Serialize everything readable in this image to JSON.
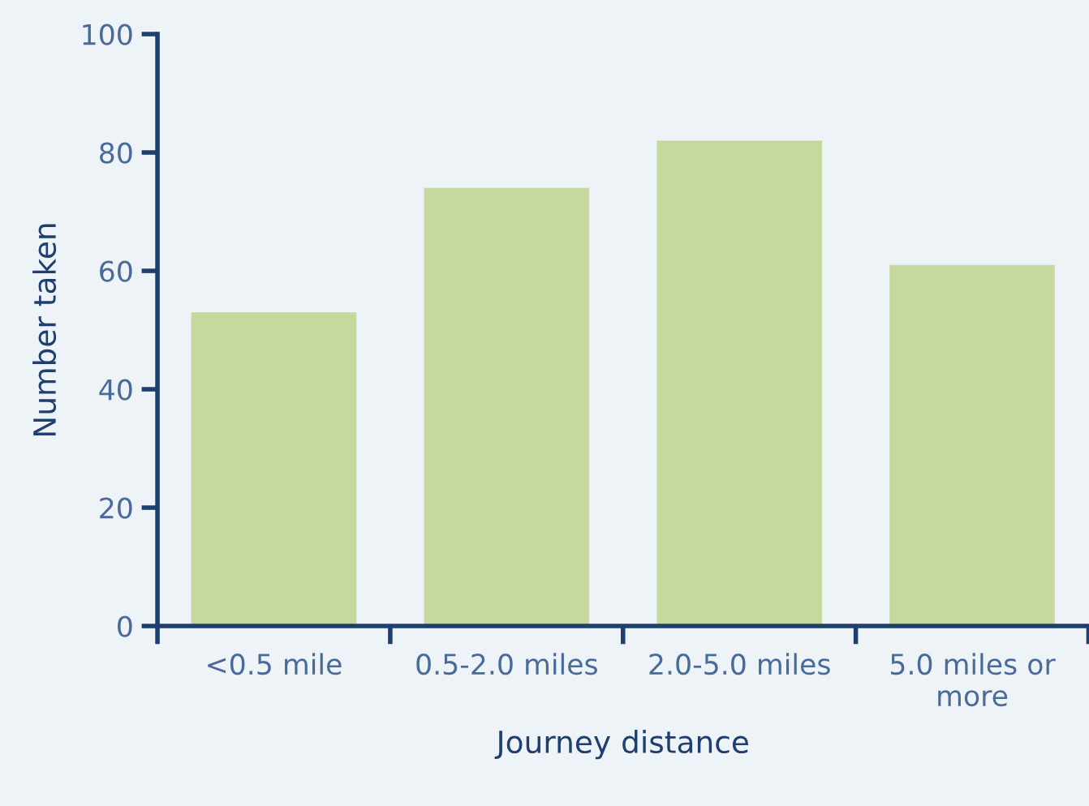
{
  "chart_data": {
    "type": "bar",
    "xlabel": "Journey distance",
    "ylabel": "Number taken",
    "categories": [
      "<0.5 mile",
      "0.5-2.0 miles",
      "2.0-5.0 miles",
      "5.0 miles or more"
    ],
    "values": [
      53,
      74,
      82,
      61
    ],
    "color": "#c5d89d",
    "ylim": [
      0,
      100
    ],
    "yticks": [
      0,
      20,
      40,
      60,
      80,
      100
    ],
    "grid": false,
    "legend": false
  }
}
